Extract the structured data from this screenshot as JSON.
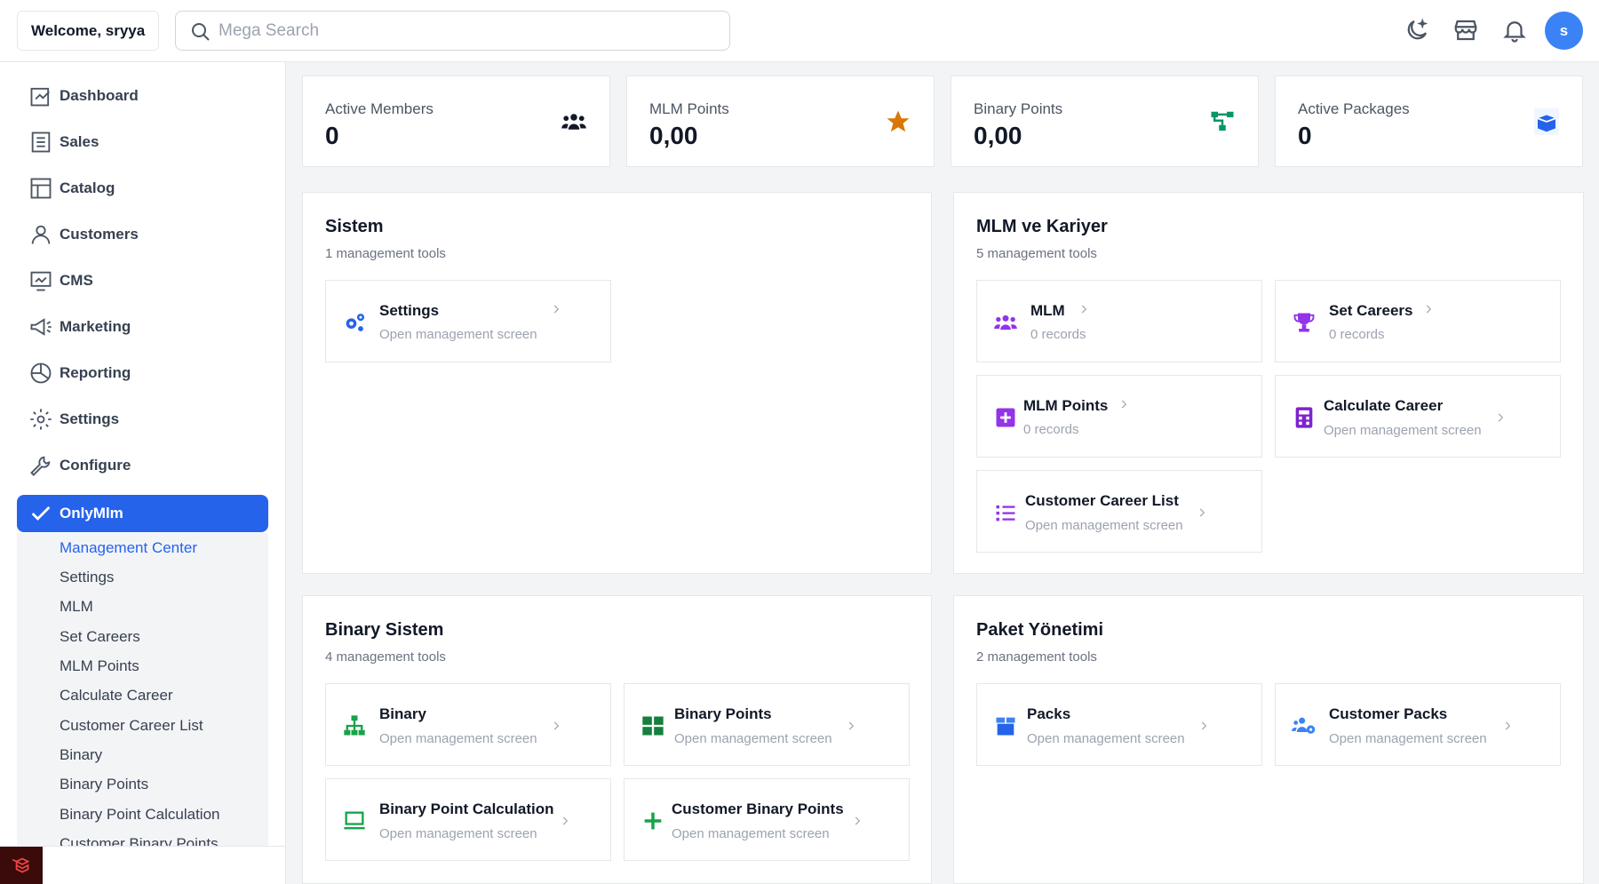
{
  "header": {
    "welcome": "Welcome, sryya",
    "search_placeholder": "Mega Search",
    "avatar_initial": "s"
  },
  "sidebar": {
    "items": [
      {
        "label": "Dashboard",
        "icon": "dashboard-icon"
      },
      {
        "label": "Sales",
        "icon": "sales-icon"
      },
      {
        "label": "Catalog",
        "icon": "catalog-icon"
      },
      {
        "label": "Customers",
        "icon": "customers-icon"
      },
      {
        "label": "CMS",
        "icon": "cms-icon"
      },
      {
        "label": "Marketing",
        "icon": "marketing-icon"
      },
      {
        "label": "Reporting",
        "icon": "reporting-icon"
      },
      {
        "label": "Settings",
        "icon": "settings-icon"
      },
      {
        "label": "Configure",
        "icon": "configure-icon"
      },
      {
        "label": "OnlyMlm",
        "icon": "check-icon"
      }
    ],
    "submenu": [
      "Management Center",
      "Settings",
      "MLM",
      "Set Careers",
      "MLM Points",
      "Calculate Career",
      "Customer Career List",
      "Binary",
      "Binary Points",
      "Binary Point Calculation",
      "Customer Binary Points"
    ]
  },
  "stats": [
    {
      "label": "Active Members",
      "value": "0",
      "icon": "members-icon",
      "color": "#111827"
    },
    {
      "label": "MLM Points",
      "value": "0,00",
      "icon": "star-icon",
      "color": "#d97706"
    },
    {
      "label": "Binary Points",
      "value": "0,00",
      "icon": "tree-icon",
      "color": "#059669"
    },
    {
      "label": "Active Packages",
      "value": "0",
      "icon": "box-icon",
      "color": "#2563eb"
    }
  ],
  "panels": {
    "sistem": {
      "title": "Sistem",
      "subtitle": "1 management tools",
      "tools": [
        {
          "name": "Settings",
          "desc": "Open management screen"
        }
      ]
    },
    "mlm": {
      "title": "MLM ve Kariyer",
      "subtitle": "5 management tools",
      "tools": [
        {
          "name": "MLM",
          "desc": "0 records"
        },
        {
          "name": "Set Careers",
          "desc": "0 records"
        },
        {
          "name": "MLM Points",
          "desc": "0 records"
        },
        {
          "name": "Calculate Career",
          "desc": "Open management screen"
        },
        {
          "name": "Customer Career List",
          "desc": "Open management screen"
        }
      ]
    },
    "binary": {
      "title": "Binary Sistem",
      "subtitle": "4 management tools",
      "tools": [
        {
          "name": "Binary",
          "desc": "Open management screen"
        },
        {
          "name": "Binary Points",
          "desc": "Open management screen"
        },
        {
          "name": "Binary Point Calculation",
          "desc": "Open management screen"
        },
        {
          "name": "Customer Binary Points",
          "desc": "Open management screen"
        }
      ]
    },
    "paket": {
      "title": "Paket Yönetimi",
      "subtitle": "2 management tools",
      "tools": [
        {
          "name": "Packs",
          "desc": "Open management screen"
        },
        {
          "name": "Customer Packs",
          "desc": "Open management screen"
        }
      ]
    }
  },
  "colors": {
    "accent": "#2563eb",
    "mlm_purple": "#9333ea",
    "binary_green": "#16a34a",
    "settings_blue": "#2563eb"
  }
}
